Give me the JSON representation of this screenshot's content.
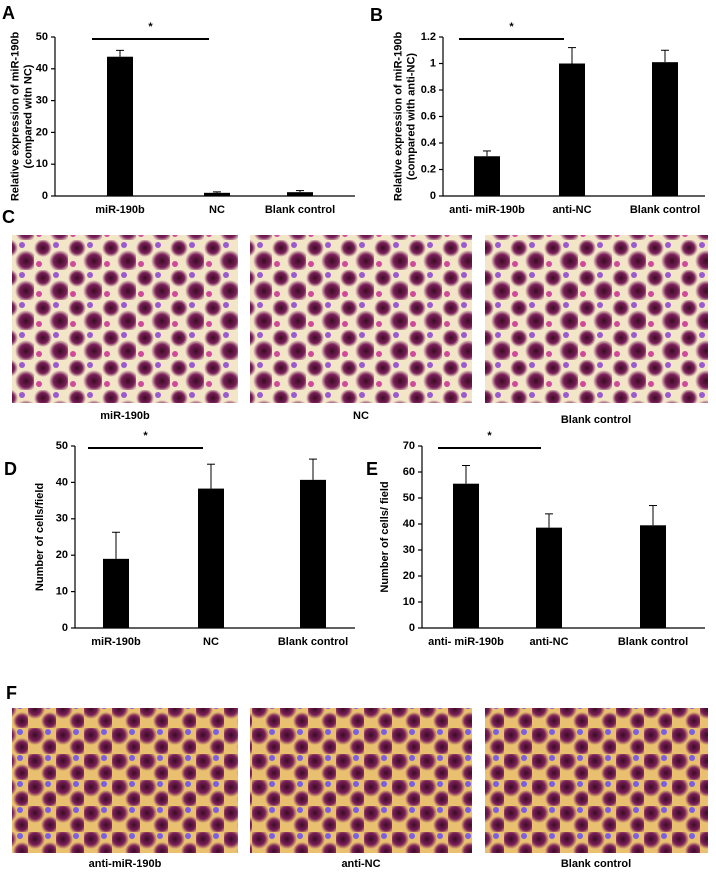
{
  "panel_labels": [
    "A",
    "B",
    "C",
    "D",
    "E",
    "F"
  ],
  "chart_data": [
    {
      "type": "bar",
      "ylabel": [
        "Relative expression of miR-190b",
        "(compared witn NC)"
      ],
      "categories": [
        "miR-190b",
        "NC",
        "Blank control"
      ],
      "values": [
        43.8,
        1.0,
        1.2
      ],
      "errors": [
        2.0,
        0.3,
        0.5
      ],
      "color": "#000000",
      "ylim": [
        0,
        50
      ],
      "yticks": [
        0,
        10,
        20,
        30,
        40,
        50
      ],
      "significance": {
        "label": "*",
        "categories": [
          0,
          1
        ]
      }
    },
    {
      "type": "bar",
      "ylabel": [
        "Relative expression of miR-190b",
        "(compared with anti-NC)"
      ],
      "categories": [
        "anti- miR-190b",
        "anti-NC",
        "Blank control"
      ],
      "values": [
        0.3,
        1.0,
        1.01
      ],
      "errors": [
        0.04,
        0.12,
        0.09
      ],
      "color": "#000000",
      "ylim": [
        0,
        1.2
      ],
      "yticks": [
        0,
        0.2,
        0.4,
        0.6,
        0.8,
        1,
        1.2
      ],
      "significance": {
        "label": "*",
        "categories": [
          0,
          1
        ]
      }
    },
    {
      "type": "bar",
      "ylabel": [
        "Number of cells/field"
      ],
      "categories": [
        "miR-190b",
        "NC",
        "Blank control"
      ],
      "values": [
        19.0,
        38.3,
        40.7
      ],
      "errors": [
        7.3,
        6.7,
        5.7
      ],
      "color": "#000000",
      "ylim": [
        0,
        50
      ],
      "yticks": [
        0,
        10,
        20,
        30,
        40,
        50
      ],
      "significance": {
        "label": "*",
        "categories": [
          0,
          1
        ]
      }
    },
    {
      "type": "bar",
      "ylabel": [
        "Number of cells/ field"
      ],
      "categories": [
        "anti- miR-190b",
        "anti-NC",
        "Blank control"
      ],
      "values": [
        55.5,
        38.6,
        39.5
      ],
      "errors": [
        7.0,
        5.3,
        7.6
      ],
      "color": "#000000",
      "ylim": [
        0,
        70
      ],
      "yticks": [
        0,
        10,
        20,
        30,
        40,
        50,
        60,
        70
      ],
      "significance": {
        "label": "*",
        "categories": [
          0,
          1
        ]
      }
    }
  ],
  "micrographs": [
    {
      "captions": [
        "miR-190b",
        "NC",
        "Blank control"
      ]
    },
    {
      "captions": [
        "anti-miR-190b",
        "anti-NC",
        "Blank control"
      ]
    }
  ]
}
